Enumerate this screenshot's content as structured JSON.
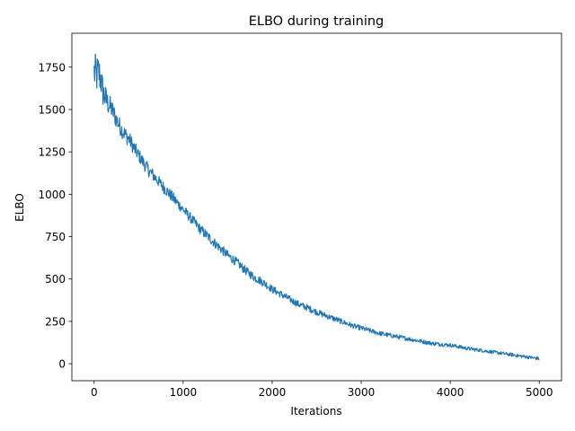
{
  "chart_data": {
    "type": "line",
    "title": "ELBO during training",
    "xlabel": "Iterations",
    "ylabel": "ELBO",
    "xlim": [
      -250,
      5250
    ],
    "ylim": [
      -100,
      1950
    ],
    "x_ticks": [
      0,
      1000,
      2000,
      3000,
      4000,
      5000
    ],
    "y_ticks": [
      0,
      250,
      500,
      750,
      1000,
      1250,
      1500,
      1750
    ],
    "grid": false,
    "legend": "none",
    "series": [
      {
        "color": "#1f77b4",
        "x": [
          0,
          25,
          50,
          75,
          100,
          150,
          200,
          250,
          300,
          350,
          400,
          450,
          500,
          600,
          700,
          800,
          900,
          1000,
          1100,
          1200,
          1300,
          1400,
          1500,
          1600,
          1700,
          1800,
          1900,
          2000,
          2100,
          2200,
          2300,
          2400,
          2500,
          2600,
          2700,
          2800,
          2900,
          3000,
          3200,
          3400,
          3600,
          3800,
          4000,
          4200,
          4400,
          4600,
          4800,
          5000
        ],
        "values": [
          1720,
          1700,
          1720,
          1680,
          1600,
          1540,
          1500,
          1440,
          1390,
          1350,
          1320,
          1270,
          1230,
          1150,
          1090,
          1030,
          970,
          910,
          850,
          790,
          740,
          690,
          640,
          600,
          550,
          510,
          480,
          440,
          410,
          380,
          350,
          330,
          305,
          285,
          265,
          245,
          225,
          210,
          180,
          160,
          140,
          120,
          110,
          90,
          75,
          60,
          45,
          30
        ],
        "noise": [
          120,
          120,
          110,
          100,
          90,
          70,
          60,
          55,
          50,
          50,
          45,
          45,
          40,
          40,
          35,
          35,
          35,
          30,
          30,
          30,
          30,
          28,
          28,
          26,
          26,
          25,
          24,
          22,
          22,
          20,
          20,
          20,
          18,
          18,
          16,
          16,
          15,
          15,
          14,
          13,
          12,
          12,
          11,
          11,
          10,
          10,
          10,
          10
        ]
      }
    ]
  }
}
